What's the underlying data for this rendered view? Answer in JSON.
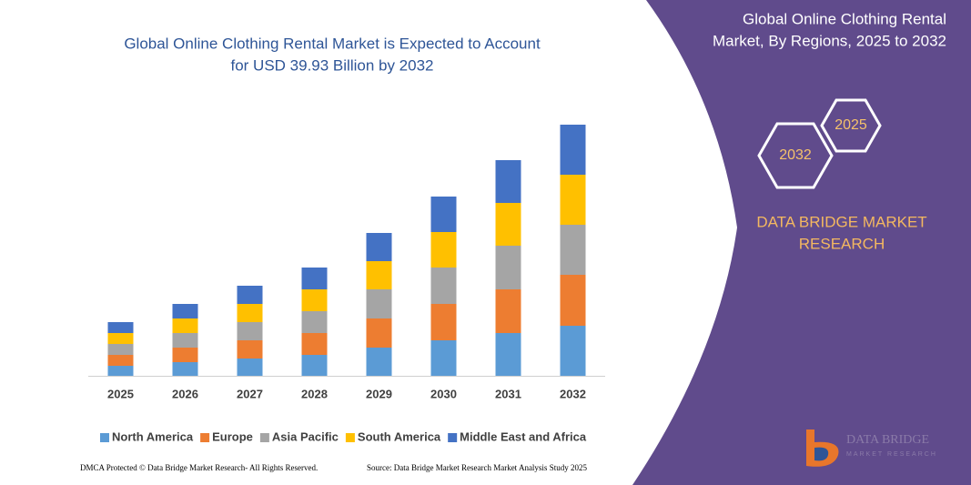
{
  "chart_data": {
    "type": "stacked_bar",
    "title": [
      "Global Online Clothing Rental Market is Expected to Account",
      "for USD 39.93 Billion by 2032"
    ],
    "categories": [
      "2025",
      "2026",
      "2027",
      "2028",
      "2029",
      "2030",
      "2031",
      "2032"
    ],
    "series": [
      {
        "name": "North America",
        "color": "#5b9bd5",
        "values": [
          11,
          15,
          19,
          23,
          31,
          39,
          47,
          55
        ]
      },
      {
        "name": "Europe",
        "color": "#ed7d31",
        "values": [
          12,
          16,
          20,
          24,
          32,
          40,
          48,
          56
        ]
      },
      {
        "name": "Asia Pacific",
        "color": "#a5a5a5",
        "values": [
          12,
          16,
          20,
          24,
          32,
          40,
          48,
          55
        ]
      },
      {
        "name": "South America",
        "color": "#ffc000",
        "values": [
          12,
          16,
          20,
          24,
          31,
          39,
          47,
          55
        ]
      },
      {
        "name": "Middle East and Africa",
        "color": "#4472c4",
        "values": [
          12,
          16,
          20,
          24,
          31,
          39,
          47,
          55
        ]
      }
    ],
    "ylim": [
      0,
      300
    ],
    "grid": false,
    "legend": "bottom"
  },
  "panel": {
    "title": [
      "Global Online Clothing Rental",
      "Market, By Regions, 2025 to 2032"
    ],
    "hexagons": [
      "2025",
      "2032"
    ],
    "brand": [
      "DATA BRIDGE MARKET",
      "RESEARCH"
    ],
    "logo": [
      "DATA BRIDGE",
      "MARKET RESEARCH"
    ]
  },
  "footer": {
    "left": "DMCA Protected © Data Bridge Market Research- All Rights Reserved.",
    "right": "Source: Data Bridge Market Research Market Analysis Study 2025"
  }
}
